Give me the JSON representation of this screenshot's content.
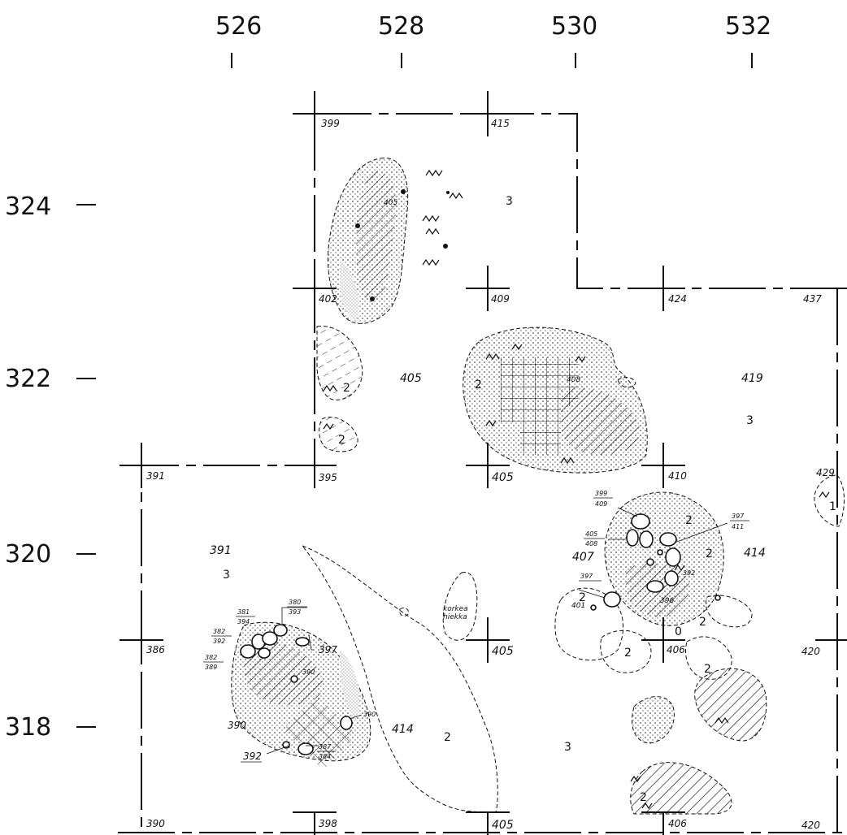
{
  "x_axis": [
    "526",
    "528",
    "530",
    "532"
  ],
  "y_axis": [
    "324",
    "322",
    "320",
    "318"
  ],
  "grid_elevations": {
    "n399": "399",
    "n415": "415",
    "n402": "402",
    "n409": "409",
    "n424": "424",
    "n437": "437",
    "n391": "391",
    "n395": "395",
    "n405a": "405",
    "n410": "410",
    "n429": "429",
    "n386": "386",
    "n405b": "405",
    "n406a": "406",
    "n420a": "420",
    "n390": "390",
    "n398": "398",
    "n405c": "405",
    "n406b": "406",
    "n420b": "420"
  },
  "area_elevations": {
    "a405_top": "405",
    "a405_mid": "405",
    "a419": "419",
    "a391": "391",
    "a407": "407",
    "a414_right": "414",
    "a414_bottom": "414",
    "a392_sw": "392",
    "a390_sw": "390",
    "a408": "408",
    "a397_e": "397",
    "a401": "401",
    "a390_c": "390",
    "a396": "396"
  },
  "zones": {
    "z3_top": "3",
    "z2_left": "2",
    "z2_left2": "2",
    "z2_hatch": "2",
    "z3_right": "3",
    "z3_sw": "3",
    "z2_e1": "2",
    "z2_e2": "2",
    "z2_e3": "2",
    "z2_e4": "2",
    "z2_e5": "2",
    "z2_e6": "2",
    "z2_bottom": "2",
    "z3_bottom": "3",
    "z2_se": "2",
    "z1_edge": "1",
    "z0": "0"
  },
  "fractions": {
    "f1": {
      "top": "381",
      "bottom": "394"
    },
    "f2": {
      "top": "380",
      "bottom": "393"
    },
    "f3": {
      "top": "382",
      "bottom": "392"
    },
    "f4": {
      "top": "382",
      "bottom": "389"
    },
    "f5": {
      "top": "390",
      "bottom": ""
    },
    "f6": {
      "top": "387",
      "bottom": "384"
    },
    "f7": {
      "top": "399",
      "bottom": "409"
    },
    "f8": {
      "top": "397",
      "bottom": "411"
    },
    "f9": {
      "top": "405",
      "bottom": "408"
    },
    "f10": {
      "top": "397",
      "bottom": ""
    },
    "f11": {
      "top": "392",
      "bottom": ""
    }
  },
  "note": [
    "korkea",
    "hiekka"
  ],
  "colors": {
    "ink": "#111111",
    "paper": "#ffffff",
    "grey_sand": "#cfcfcf"
  }
}
